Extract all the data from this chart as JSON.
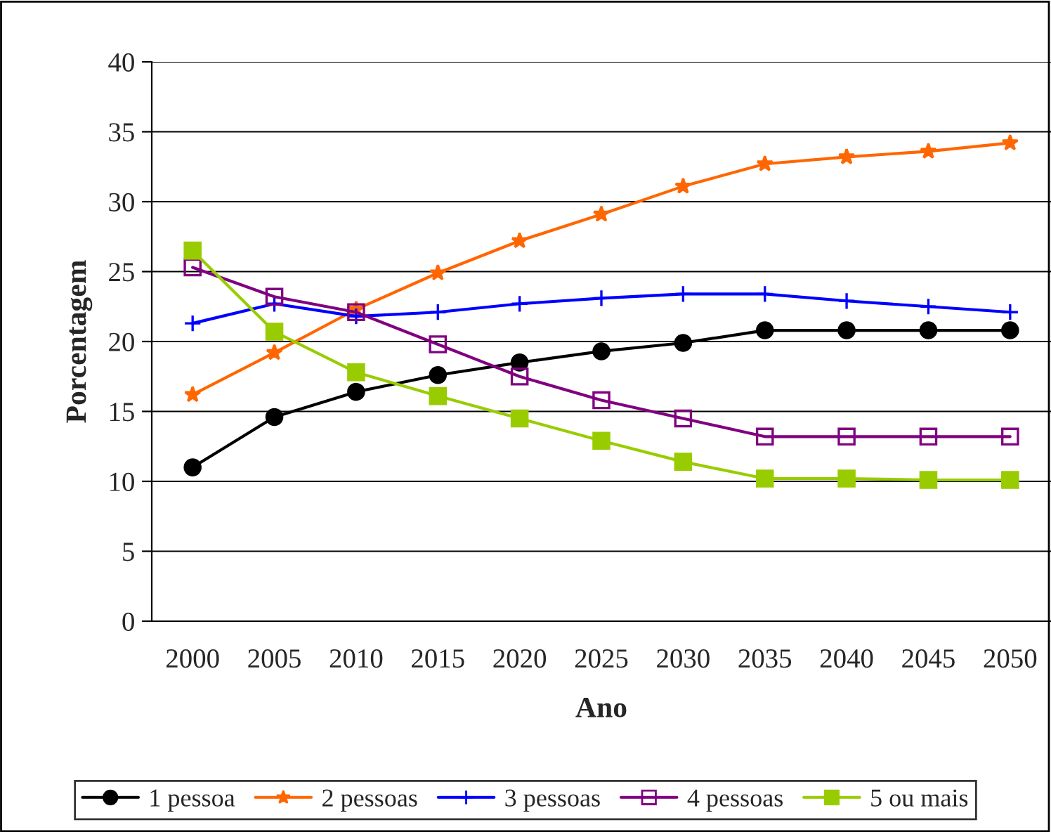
{
  "chart_data": {
    "type": "line",
    "xlabel": "Ano",
    "ylabel": "Porcentagem",
    "categories": [
      "2000",
      "2005",
      "2010",
      "2015",
      "2020",
      "2025",
      "2030",
      "2035",
      "2040",
      "2045",
      "2050"
    ],
    "series": [
      {
        "name": "1 pessoa",
        "color": "#000000",
        "marker": "circle",
        "values": [
          11.0,
          14.6,
          16.4,
          17.6,
          18.5,
          19.3,
          19.9,
          20.8,
          20.8,
          20.8,
          20.8
        ]
      },
      {
        "name": "2 pessoas",
        "color": "#ff6600",
        "marker": "star",
        "values": [
          16.2,
          19.2,
          22.3,
          24.9,
          27.2,
          29.1,
          31.1,
          32.7,
          33.2,
          33.6,
          34.2
        ]
      },
      {
        "name": "3 pessoas",
        "color": "#0000ff",
        "marker": "cross",
        "values": [
          21.3,
          22.7,
          21.8,
          22.1,
          22.7,
          23.1,
          23.4,
          23.4,
          22.9,
          22.5,
          22.1
        ]
      },
      {
        "name": "4 pessoas",
        "color": "#800080",
        "marker": "square_open",
        "values": [
          25.3,
          23.2,
          22.1,
          19.8,
          17.5,
          15.8,
          14.5,
          13.2,
          13.2,
          13.2,
          13.2
        ]
      },
      {
        "name": "5 ou mais",
        "color": "#99cc00",
        "marker": "square",
        "values": [
          26.5,
          20.7,
          17.8,
          16.1,
          14.5,
          12.9,
          11.4,
          10.2,
          10.2,
          10.1,
          10.1
        ]
      }
    ],
    "ylim": [
      0,
      40
    ],
    "yticks": [
      0,
      5,
      10,
      15,
      20,
      25,
      30,
      35,
      40
    ],
    "grid": "y",
    "legend": "bottom"
  }
}
